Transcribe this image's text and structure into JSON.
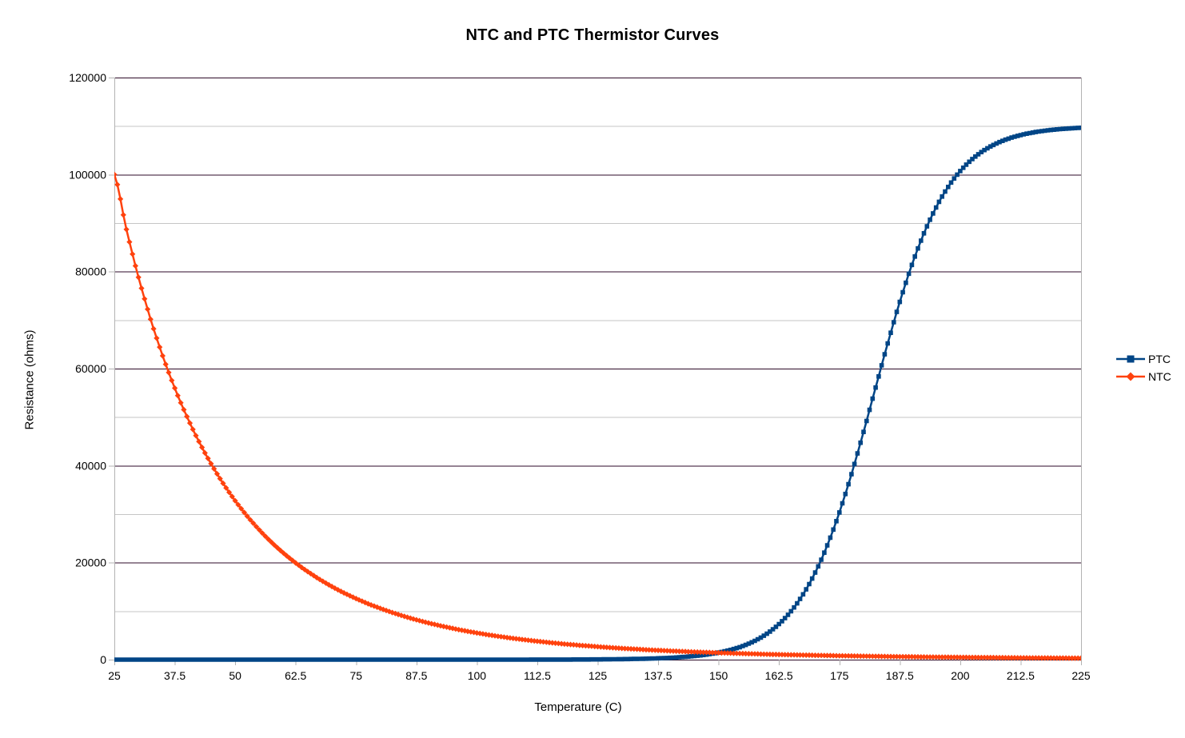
{
  "colors": {
    "ptc": "#004586",
    "ntc": "#ff420e",
    "major_grid": "#2d0a28",
    "minor_grid": "#c6c6c6",
    "axis": "#b3b3b3",
    "text": "#000000",
    "background": "#ffffff"
  },
  "chart_data": {
    "type": "line",
    "title": "NTC and PTC Thermistor Curves",
    "xlabel": "Temperature (C)",
    "ylabel": "Resistance (ohms)",
    "xlim": [
      25,
      225
    ],
    "ylim": [
      0,
      120000
    ],
    "grid": "horizontal major and minor",
    "legend_position": "right",
    "x_tick_values": [
      25,
      37.5,
      50,
      62.5,
      75,
      87.5,
      100,
      112.5,
      125,
      137.5,
      150,
      162.5,
      175,
      187.5,
      200,
      212.5,
      225
    ],
    "x_tick_labels": [
      "25",
      "37.5",
      "50",
      "62.5",
      "75",
      "87.5",
      "100",
      "112.5",
      "125",
      "137.5",
      "150",
      "162.5",
      "175",
      "187.5",
      "200",
      "212.5",
      "225"
    ],
    "y_tick_values": [
      0,
      20000,
      40000,
      60000,
      80000,
      100000,
      120000
    ],
    "y_tick_labels": [
      "0",
      "20000",
      "40000",
      "60000",
      "80000",
      "100000",
      "120000"
    ],
    "y_minor_tick_values": [
      10000,
      30000,
      50000,
      70000,
      90000,
      110000
    ],
    "x": [
      25,
      27.5,
      30,
      32.5,
      35,
      37.5,
      40,
      42.5,
      45,
      47.5,
      50,
      52.5,
      55,
      57.5,
      60,
      62.5,
      65,
      67.5,
      70,
      72.5,
      75,
      77.5,
      80,
      82.5,
      85,
      87.5,
      90,
      92.5,
      95,
      97.5,
      100,
      102.5,
      105,
      107.5,
      110,
      112.5,
      115,
      117.5,
      120,
      122.5,
      125,
      127.5,
      130,
      132.5,
      135,
      137.5,
      140,
      142.5,
      145,
      147.5,
      150,
      152.5,
      155,
      157.5,
      160,
      162.5,
      165,
      167.5,
      170,
      172.5,
      175,
      177.5,
      180,
      182.5,
      185,
      187.5,
      190,
      192.5,
      195,
      197.5,
      200,
      202.5,
      205,
      207.5,
      210,
      212.5,
      215,
      217.5,
      220,
      222.5,
      225
    ],
    "series": [
      {
        "name": "PTC",
        "color": "#004586",
        "marker": "square",
        "values": [
          0,
          0,
          0,
          0,
          0,
          0,
          0,
          0,
          0,
          0,
          0,
          0,
          0,
          0,
          0,
          0,
          0,
          0,
          0,
          0,
          0,
          0,
          0,
          0,
          0,
          0,
          0,
          1,
          1,
          1,
          2,
          3,
          4,
          5,
          7,
          10,
          13,
          19,
          26,
          37,
          52,
          72,
          101,
          141,
          197,
          274,
          383,
          536,
          747,
          1041,
          1451,
          2018,
          2799,
          3873,
          5343,
          7328,
          9982,
          13465,
          17945,
          23560,
          30345,
          38220,
          46947,
          56100,
          65191,
          73748,
          81380,
          87890,
          93220,
          97458,
          100723,
          103200,
          105053,
          106414,
          107412,
          108140,
          108663,
          109040,
          109311,
          109507,
          109649
        ]
      },
      {
        "name": "NTC",
        "color": "#ff420e",
        "marker": "diamond",
        "values": [
          100000,
          88700,
          78830,
          70190,
          62630,
          55980,
          50130,
          44960,
          40400,
          36350,
          32760,
          29570,
          26740,
          24210,
          21960,
          19950,
          18150,
          16530,
          15080,
          13770,
          12590,
          11530,
          10580,
          9710,
          8920,
          8210,
          7560,
          6980,
          6440,
          5950,
          5510,
          5100,
          4730,
          4390,
          4080,
          3790,
          3530,
          3280,
          3060,
          2860,
          2670,
          2490,
          2330,
          2190,
          2050,
          1920,
          1800,
          1690,
          1590,
          1500,
          1410,
          1330,
          1250,
          1180,
          1110,
          1050,
          996,
          941,
          891,
          844,
          799,
          758,
          719,
          683,
          648,
          616,
          586,
          557,
          530,
          505,
          481,
          459,
          438,
          417,
          399,
          381,
          364,
          348,
          333,
          318,
          305
        ]
      }
    ]
  }
}
